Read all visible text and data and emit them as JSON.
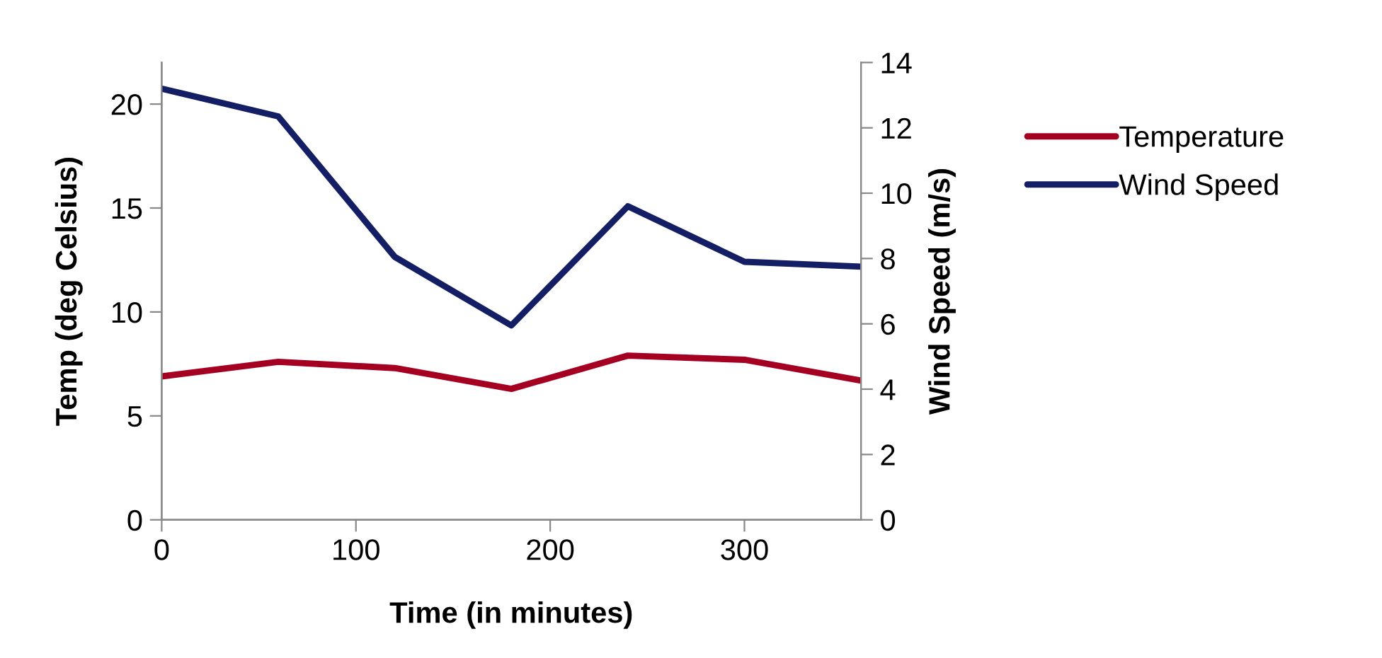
{
  "chart_data": {
    "type": "line",
    "xlabel": "Time (in minutes)",
    "ylabel": "Temp (deg Celsius)",
    "y2label": "Wind Speed (m/s)",
    "x": [
      0,
      60,
      120,
      180,
      240,
      300,
      360
    ],
    "series": [
      {
        "name": "Temperature",
        "color": "#a50021",
        "values": [
          6.9,
          7.6,
          7.3,
          6.3,
          7.9,
          7.7,
          6.7
        ]
      },
      {
        "name": "Wind Speed",
        "color": "#141e64",
        "axis": "y2",
        "values": [
          13.2,
          12.35,
          8.05,
          5.95,
          9.6,
          7.9,
          7.75
        ]
      }
    ],
    "xlim": [
      0,
      360
    ],
    "xticks": [
      0,
      100,
      200,
      300
    ],
    "ylim": [
      0,
      22
    ],
    "yticks": [
      0,
      5,
      10,
      15,
      20
    ],
    "y2lim": [
      0,
      14
    ],
    "y2ticks": [
      0,
      2,
      4,
      6,
      8,
      10,
      12,
      14
    ],
    "grid": false,
    "legend": "right",
    "marker": "none",
    "line_style": "solid"
  }
}
